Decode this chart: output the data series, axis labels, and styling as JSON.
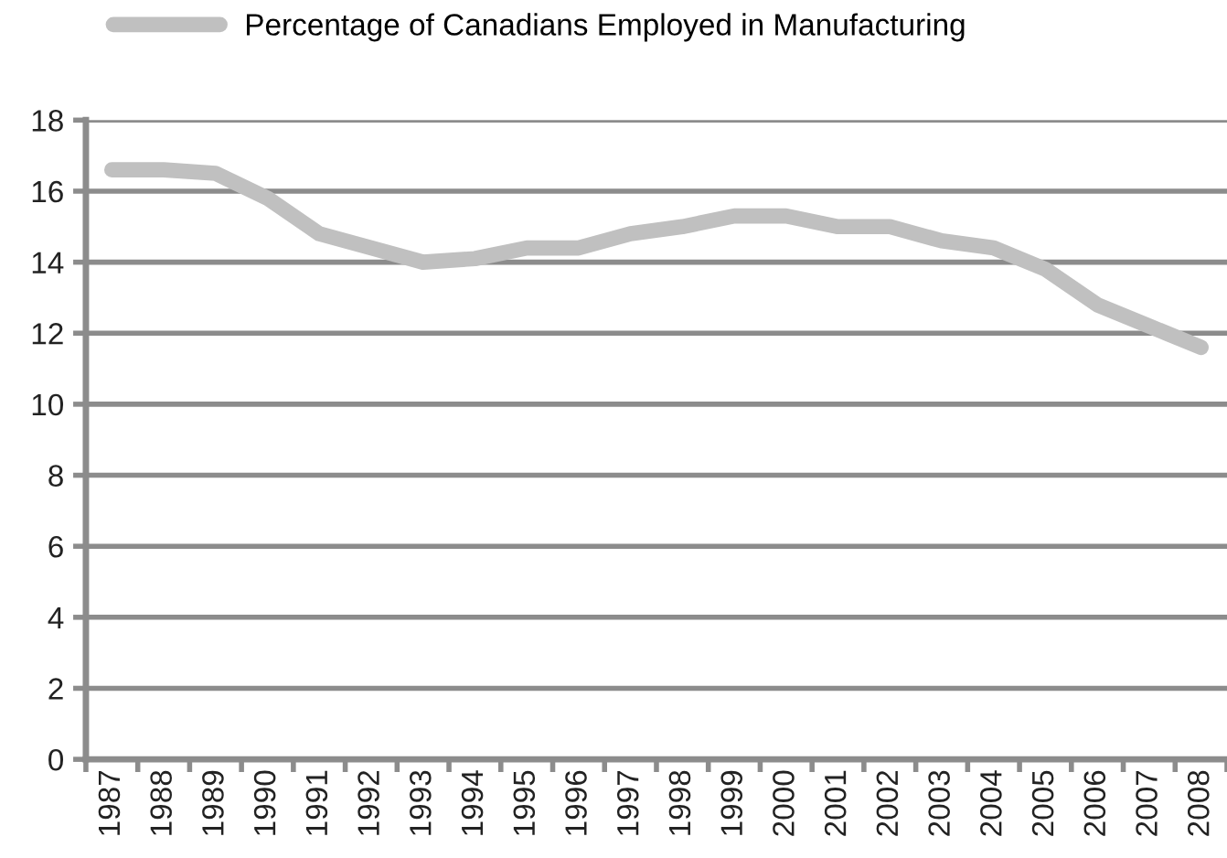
{
  "chart_data": {
    "type": "line",
    "categories": [
      "1987",
      "1988",
      "1989",
      "1990",
      "1991",
      "1992",
      "1993",
      "1994",
      "1995",
      "1996",
      "1997",
      "1998",
      "1999",
      "2000",
      "2001",
      "2002",
      "2003",
      "2004",
      "2005",
      "2006",
      "2007",
      "2008"
    ],
    "series": [
      {
        "name": "Percentage of Canadians Employed in Manufacturing",
        "color": "#c0c0c0",
        "values": [
          16.6,
          16.6,
          16.5,
          15.8,
          14.8,
          14.4,
          14.0,
          14.1,
          14.4,
          14.4,
          14.8,
          15.0,
          15.3,
          15.3,
          15.0,
          15.0,
          14.6,
          14.4,
          13.8,
          12.8,
          12.2,
          11.6
        ]
      }
    ],
    "ylim": [
      0,
      18
    ],
    "yticks": [
      0,
      2,
      4,
      6,
      8,
      10,
      12,
      14,
      16,
      18
    ],
    "grid": "y",
    "legend": "top left",
    "marker": "none",
    "line_style": "solid"
  }
}
